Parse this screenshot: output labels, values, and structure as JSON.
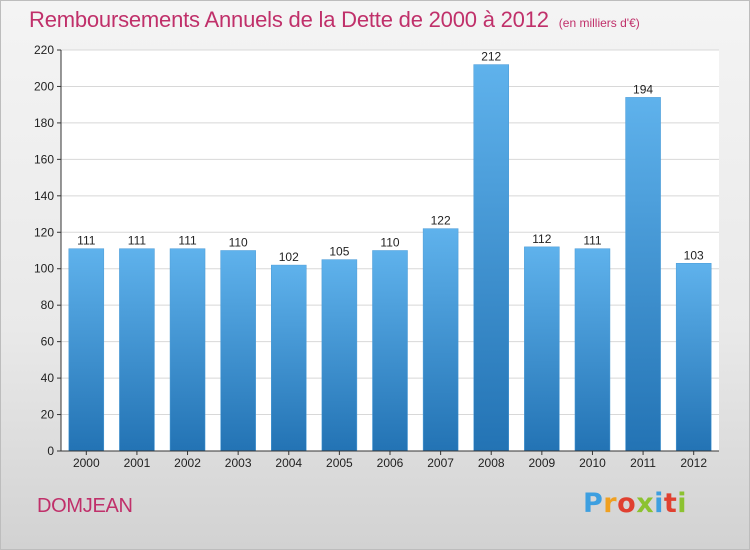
{
  "header": {
    "title": "Remboursements Annuels de la Dette de 2000 à 2012",
    "subtitle": "(en milliers d'€)"
  },
  "footer": {
    "town": "DOMJEAN",
    "logo_letters": [
      "P",
      "r",
      "o",
      "x",
      "i",
      "t",
      "i"
    ]
  },
  "colors": {
    "title": "#c0306a",
    "bar_top": "#5fb2ec",
    "bar_bottom": "#2373b4",
    "grid": "#d8d8d8",
    "axis": "#333333"
  },
  "chart_data": {
    "type": "bar",
    "title": "Remboursements Annuels de la Dette de 2000 à 2012",
    "subtitle": "(en milliers d'€)",
    "xlabel": "",
    "ylabel": "",
    "categories": [
      "2000",
      "2001",
      "2002",
      "2003",
      "2004",
      "2005",
      "2006",
      "2007",
      "2008",
      "2009",
      "2010",
      "2011",
      "2012"
    ],
    "values": [
      111,
      111,
      111,
      110,
      102,
      105,
      110,
      122,
      212,
      112,
      111,
      194,
      103
    ],
    "ylim": [
      0,
      220
    ],
    "yticks": [
      0,
      20,
      40,
      60,
      80,
      100,
      120,
      140,
      160,
      180,
      200,
      220
    ],
    "grid": true,
    "legend": "none"
  }
}
